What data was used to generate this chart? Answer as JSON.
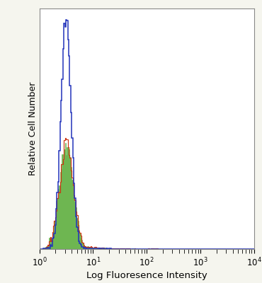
{
  "xlabel": "Log Fluoresence Intensity",
  "ylabel": "Relative Cell Number",
  "background_color": "#f5f5ee",
  "plot_bg_color": "#ffffff",
  "blue_color": "#2233bb",
  "red_color": "#cc3311",
  "green_color": "#55aa33",
  "green_alpha": 0.85,
  "seed": 42,
  "n_cells": 12000
}
